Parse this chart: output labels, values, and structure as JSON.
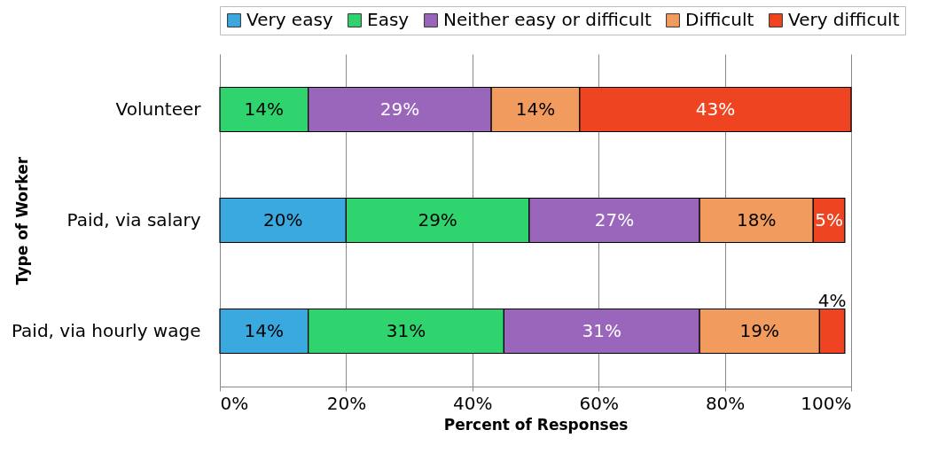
{
  "chart_data": {
    "type": "bar",
    "orientation": "horizontal",
    "stacked": true,
    "grid": "x",
    "legend": "top",
    "xlabel": "Percent of Responses",
    "ylabel": "Type of Worker",
    "categories": [
      "Volunteer",
      "Paid, via salary",
      "Paid, via hourly wage"
    ],
    "xlim": [
      0,
      100
    ],
    "xticks": [
      {
        "value": 0,
        "label": "0%"
      },
      {
        "value": 20,
        "label": "20%"
      },
      {
        "value": 40,
        "label": "40%"
      },
      {
        "value": 60,
        "label": "60%"
      },
      {
        "value": 80,
        "label": "80%"
      },
      {
        "value": 100,
        "label": "100%"
      }
    ],
    "series": [
      {
        "name": "Very easy",
        "color": "#3aa9e0",
        "values": [
          null,
          20,
          14
        ],
        "value_labels": [
          null,
          "20%",
          "14%"
        ]
      },
      {
        "name": "Easy",
        "color": "#2fd46e",
        "values": [
          14,
          29,
          31
        ],
        "value_labels": [
          "14%",
          "29%",
          "31%"
        ]
      },
      {
        "name": "Neither easy or difficult",
        "color": "#9966bb",
        "values": [
          29,
          27,
          31
        ],
        "value_labels": [
          "29%",
          "27%",
          "31%"
        ]
      },
      {
        "name": "Difficult",
        "color": "#f29b5f",
        "values": [
          14,
          18,
          19
        ],
        "value_labels": [
          "14%",
          "18%",
          "19%"
        ]
      },
      {
        "name": "Very difficult",
        "color": "#ee4422",
        "values": [
          43,
          5,
          4
        ],
        "value_labels": [
          "43%",
          "5%",
          "4%"
        ]
      }
    ]
  }
}
